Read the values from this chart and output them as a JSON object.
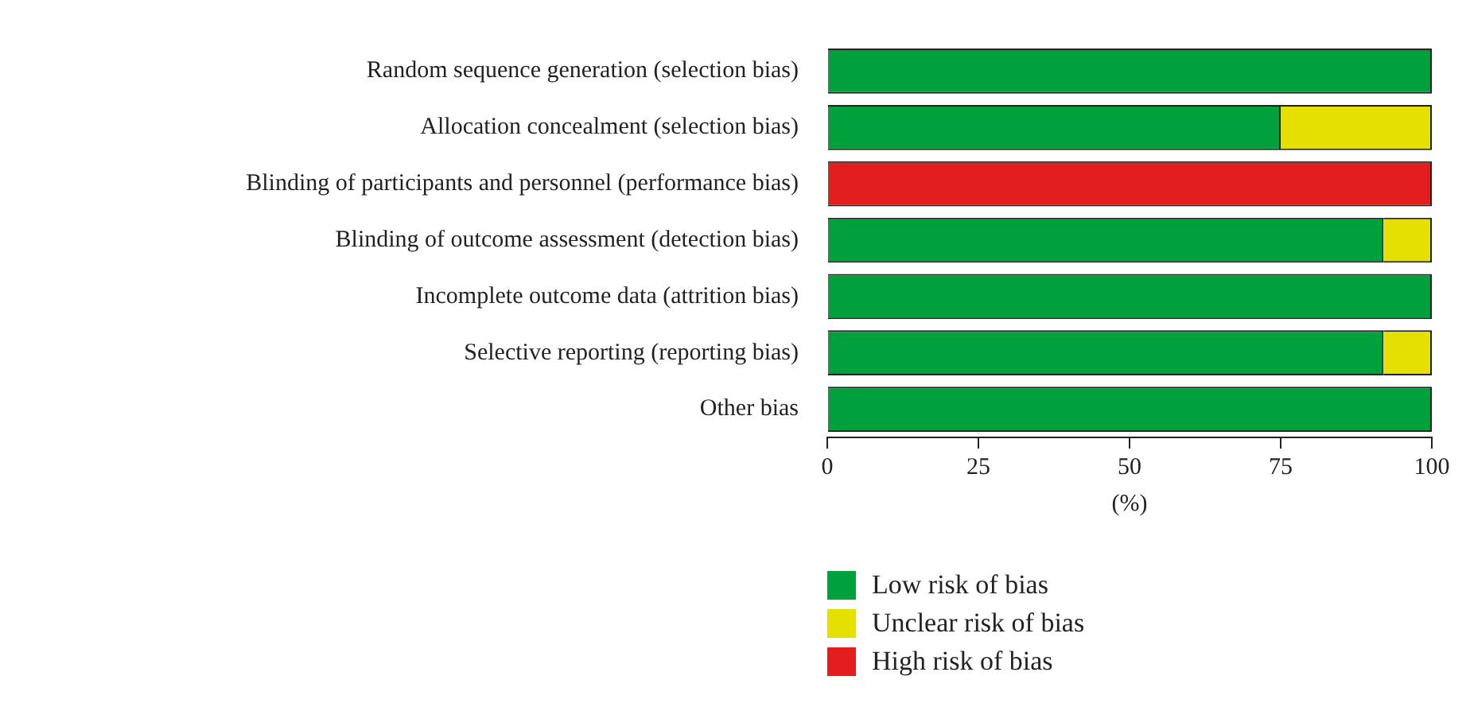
{
  "chart_data": {
    "type": "bar",
    "orientation": "horizontal",
    "stacked": true,
    "categories": [
      "Random sequence generation (selection bias)",
      "Allocation concealment (selection bias)",
      "Blinding of participants and personnel (performance bias)",
      "Blinding of outcome assessment (detection bias)",
      "Incomplete outcome data (attrition bias)",
      "Selective reporting (reporting bias)",
      "Other bias"
    ],
    "series": [
      {
        "name": "Low risk of bias",
        "color": "#00a03c",
        "values": [
          100,
          75,
          0,
          92,
          100,
          92,
          100
        ]
      },
      {
        "name": "Unclear risk of bias",
        "color": "#e5e000",
        "values": [
          0,
          25,
          0,
          8,
          0,
          8,
          0
        ]
      },
      {
        "name": "High risk of bias",
        "color": "#e31e1e",
        "values": [
          0,
          0,
          100,
          0,
          0,
          0,
          0
        ]
      }
    ],
    "xlim": [
      0,
      100
    ],
    "xticks": [
      0,
      25,
      50,
      75,
      100
    ],
    "xlabel": "(%)",
    "legend": "bottom"
  }
}
